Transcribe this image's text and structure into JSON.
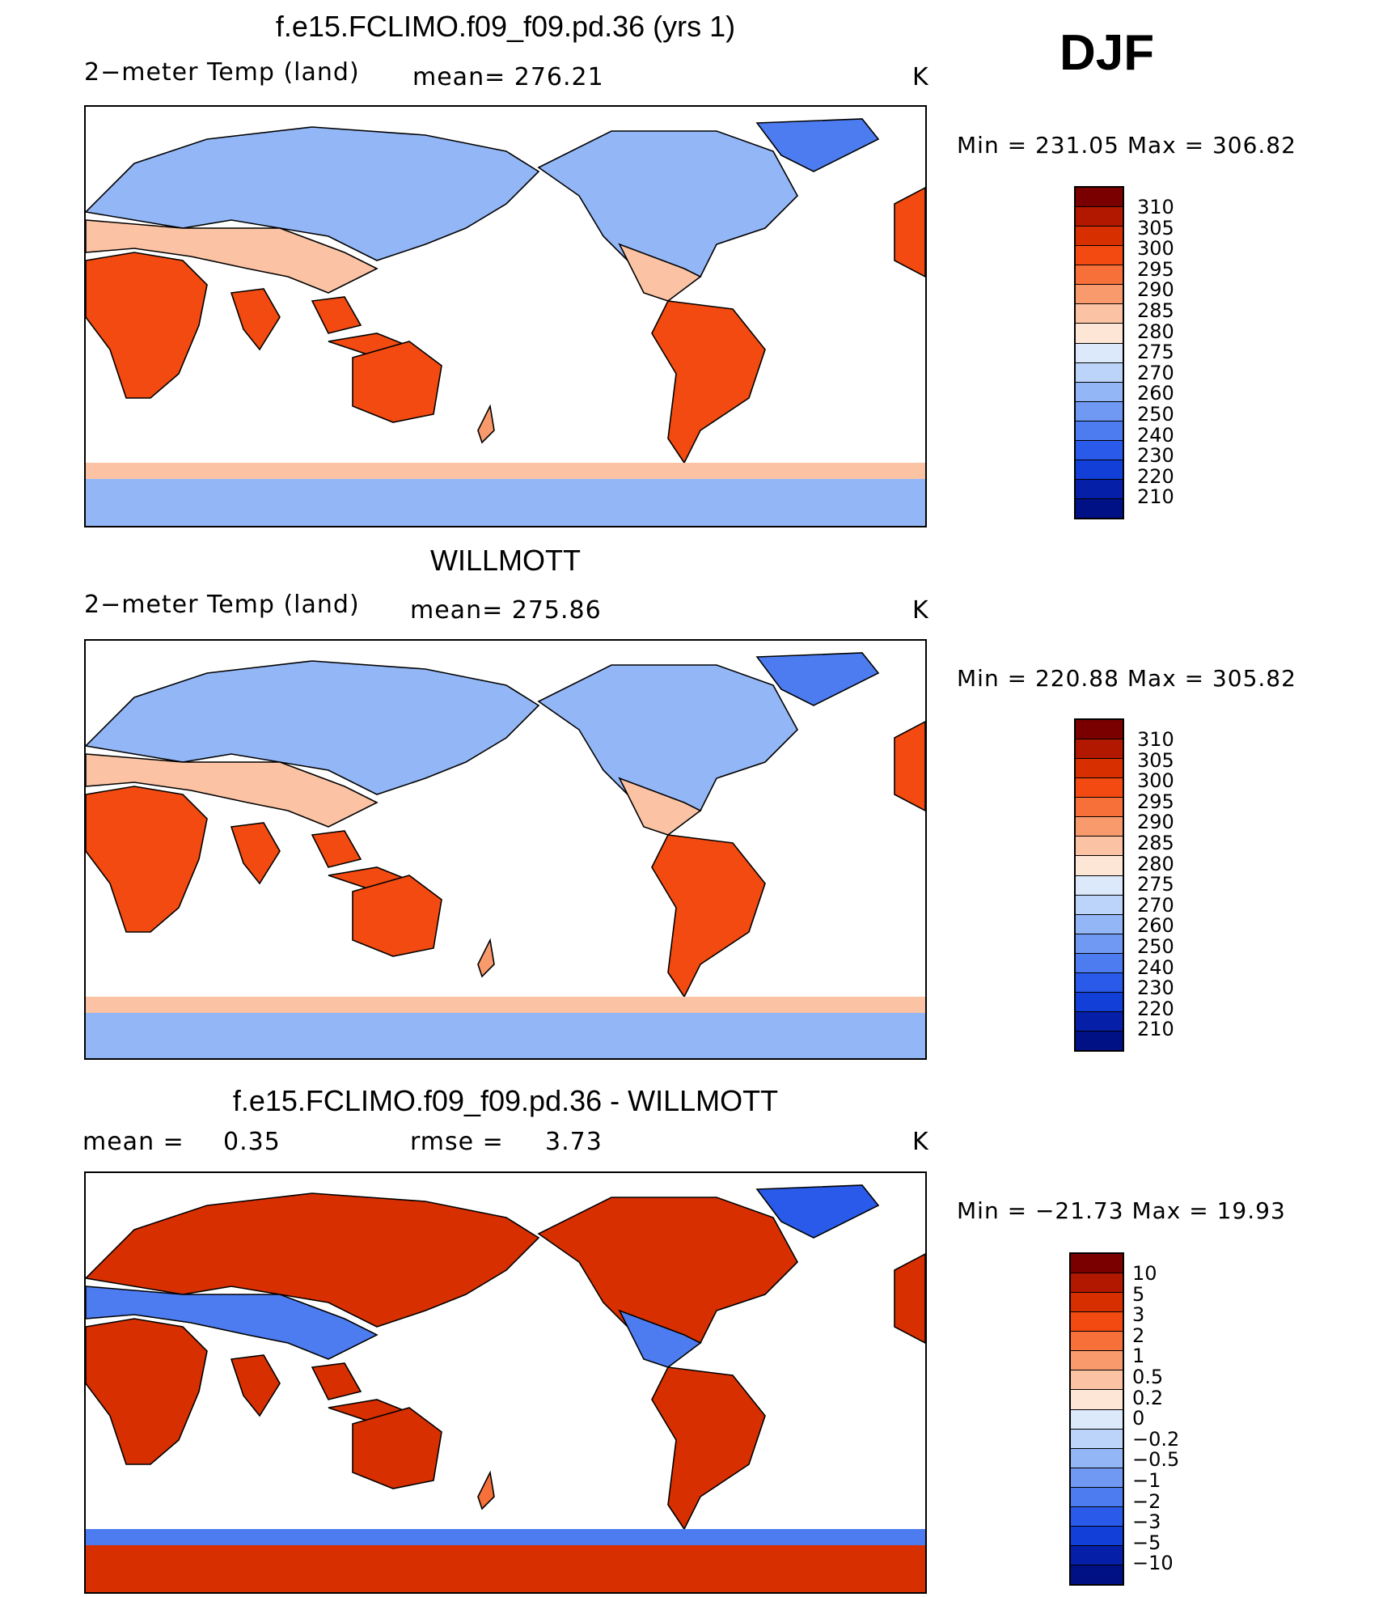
{
  "season": "DJF",
  "panels": [
    {
      "title": "f.e15.FCLIMO.f09_f09.pd.36 (yrs 1)",
      "variable": "2−meter Temp (land)",
      "stat": "mean= 276.21",
      "units": "K",
      "minmax": "Min = 231.05 Max = 306.82",
      "type": "abs"
    },
    {
      "title": "WILLMOTT",
      "variable": "2−meter Temp (land)",
      "stat": "mean= 275.86",
      "units": "K",
      "minmax": "Min = 220.88 Max = 305.82",
      "type": "abs"
    },
    {
      "title": "f.e15.FCLIMO.f09_f09.pd.36 - WILLMOTT",
      "variable": "mean =",
      "stat_value": "0.35",
      "stat": "rmse =",
      "stat2_value": "3.73",
      "units": "K",
      "minmax": "Min = −21.73 Max =   19.93",
      "type": "diff"
    }
  ],
  "colors": {
    "abs": [
      "#7a0000",
      "#b21800",
      "#d82f00",
      "#f24a10",
      "#f7703a",
      "#f99a6c",
      "#fbc3a4",
      "#fde6d6",
      "#dbe9fb",
      "#bcd4f9",
      "#93b6f6",
      "#6f99f2",
      "#4d7cf0",
      "#2a5aea",
      "#123fd8",
      "#061fa8",
      "#001185"
    ],
    "diff": [
      "#7a0000",
      "#b21800",
      "#d82f00",
      "#f24a10",
      "#f7703a",
      "#f99a6c",
      "#fbc3a4",
      "#fde6d6",
      "#dbe9fb",
      "#bcd4f9",
      "#93b6f6",
      "#6f99f2",
      "#4d7cf0",
      "#2a5aea",
      "#123fd8",
      "#061fa8",
      "#001185"
    ]
  },
  "chart_data": [
    {
      "type": "heatmap",
      "title": "f.e15.FCLIMO.f09_f09.pd.36 (yrs 1)",
      "variable": "2-meter Temp (land)",
      "units": "K",
      "mean": 276.21,
      "min": 231.05,
      "max": 306.82,
      "colorbar_levels": [
        310,
        305,
        300,
        295,
        290,
        285,
        280,
        275,
        270,
        260,
        250,
        240,
        230,
        220,
        210
      ]
    },
    {
      "type": "heatmap",
      "title": "WILLMOTT",
      "variable": "2-meter Temp (land)",
      "units": "K",
      "mean": 275.86,
      "min": 220.88,
      "max": 305.82,
      "colorbar_levels": [
        310,
        305,
        300,
        295,
        290,
        285,
        280,
        275,
        270,
        260,
        250,
        240,
        230,
        220,
        210
      ]
    },
    {
      "type": "heatmap",
      "title": "f.e15.FCLIMO.f09_f09.pd.36 - WILLMOTT",
      "units": "K",
      "mean": 0.35,
      "rmse": 3.73,
      "min": -21.73,
      "max": 19.93,
      "colorbar_levels": [
        "10",
        "5",
        "3",
        "2",
        "1",
        "0.5",
        "0.2",
        "0",
        "−0.2",
        "−0.5",
        "−1",
        "−2",
        "−3",
        "−5",
        "−10"
      ]
    }
  ]
}
